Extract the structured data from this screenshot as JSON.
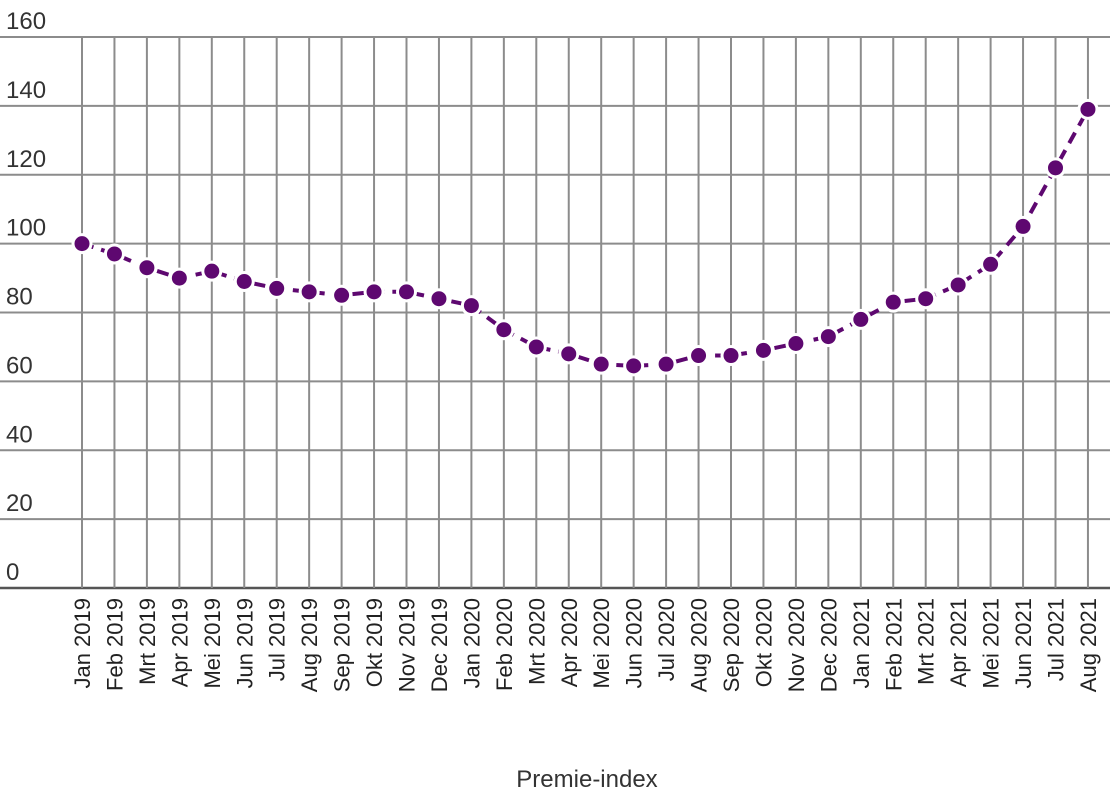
{
  "chart_data": {
    "type": "line",
    "title": "",
    "xlabel": "Premie-index",
    "ylabel": "",
    "ylim": [
      0,
      160
    ],
    "yticks": [
      0,
      20,
      40,
      60,
      80,
      100,
      120,
      140,
      160
    ],
    "grid": true,
    "categories": [
      "Jan 2019",
      "Feb 2019",
      "Mrt 2019",
      "Apr 2019",
      "Mei 2019",
      "Jun 2019",
      "Jul 2019",
      "Aug 2019",
      "Sep 2019",
      "Okt 2019",
      "Nov 2019",
      "Dec 2019",
      "Jan 2020",
      "Feb 2020",
      "Mrt 2020",
      "Apr 2020",
      "Mei 2020",
      "Jun 2020",
      "Jul 2020",
      "Aug 2020",
      "Sep 2020",
      "Okt 2020",
      "Nov 2020",
      "Dec 2020",
      "Jan 2021",
      "Feb 2021",
      "Mrt 2021",
      "Apr 2021",
      "Mei 2021",
      "Jun 2021",
      "Jul 2021",
      "Aug 2021"
    ],
    "series": [
      {
        "values": [
          100,
          97,
          93,
          90,
          92,
          89,
          87,
          86,
          85,
          86,
          86,
          84,
          82,
          75,
          70,
          68,
          65,
          64.5,
          65,
          67.5,
          67.5,
          69,
          71,
          73,
          78,
          83,
          84,
          88,
          94,
          105,
          122,
          139
        ],
        "color": "#5e0870"
      }
    ],
    "colors": {
      "line": "#5e0870",
      "grid": "#8c8c8c",
      "marker_stroke": "#ffffff"
    }
  }
}
